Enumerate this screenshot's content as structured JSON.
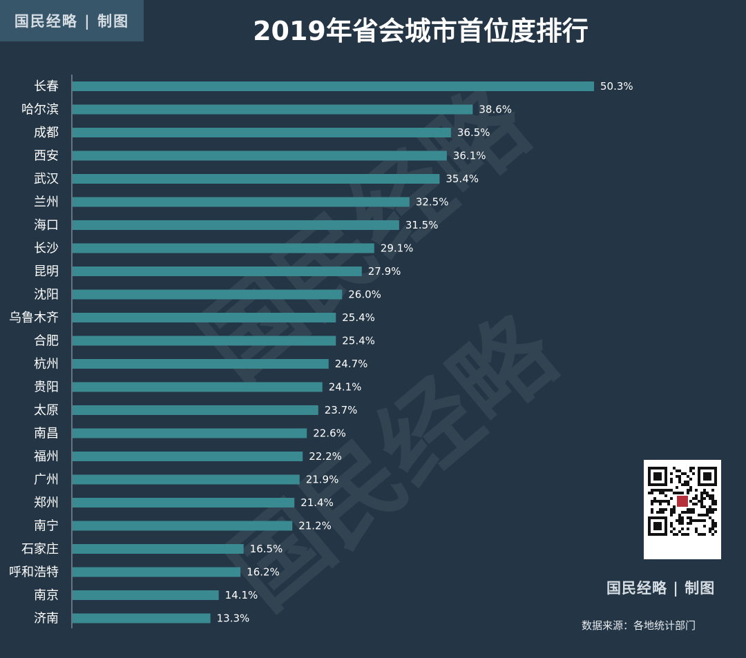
{
  "brand": {
    "top_label": "国民经略 | 制图",
    "bottom_label": "国民经略 | 制图",
    "watermark": "国民经略"
  },
  "source_note": "数据来源：各地统计部门",
  "colors": {
    "background": "#243545",
    "bar": "#3a8a92",
    "text": "#ffffff"
  },
  "chart_data": {
    "type": "bar",
    "orientation": "horizontal",
    "title": "2019年省会城市首位度排行",
    "xlabel": "",
    "ylabel": "",
    "xlim": [
      0,
      50.3
    ],
    "grid": false,
    "legend": false,
    "categories": [
      "长春",
      "哈尔滨",
      "成都",
      "西安",
      "武汉",
      "兰州",
      "海口",
      "长沙",
      "昆明",
      "沈阳",
      "乌鲁木齐",
      "合肥",
      "杭州",
      "贵阳",
      "太原",
      "南昌",
      "福州",
      "广州",
      "郑州",
      "南宁",
      "石家庄",
      "呼和浩特",
      "南京",
      "济南"
    ],
    "values": [
      50.3,
      38.6,
      36.5,
      36.1,
      35.4,
      32.5,
      31.5,
      29.1,
      27.9,
      26.0,
      25.4,
      25.4,
      24.7,
      24.1,
      23.7,
      22.6,
      22.2,
      21.9,
      21.4,
      21.2,
      16.5,
      16.2,
      14.1,
      13.3
    ],
    "value_labels": [
      "50.3%",
      "38.6%",
      "36.5%",
      "36.1%",
      "35.4%",
      "32.5%",
      "31.5%",
      "29.1%",
      "27.9%",
      "26.0%",
      "25.4%",
      "25.4%",
      "24.7%",
      "24.1%",
      "23.7%",
      "22.6%",
      "22.2%",
      "21.9%",
      "21.4%",
      "21.2%",
      "16.5%",
      "16.2%",
      "14.1%",
      "13.3%"
    ]
  }
}
